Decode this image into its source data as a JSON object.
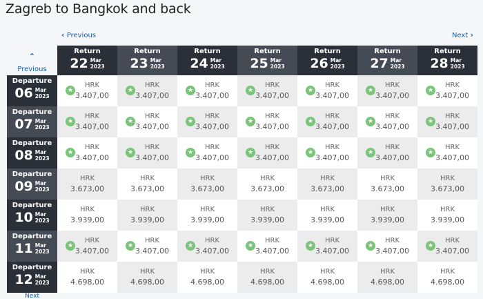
{
  "title": "Zagreb to Bangkok and back",
  "nav": {
    "prev_label": "Previous",
    "next_label": "Next",
    "prev_side_label": "Previous",
    "next_side_label": "Next"
  },
  "returns": [
    {
      "label": "Return",
      "day": "22",
      "month": "Mar",
      "year": "2023"
    },
    {
      "label": "Return",
      "day": "23",
      "month": "Mar",
      "year": "2023"
    },
    {
      "label": "Return",
      "day": "24",
      "month": "Mar",
      "year": "2023"
    },
    {
      "label": "Return",
      "day": "25",
      "month": "Mar",
      "year": "2023"
    },
    {
      "label": "Return",
      "day": "26",
      "month": "Mar",
      "year": "2023"
    },
    {
      "label": "Return",
      "day": "27",
      "month": "Mar",
      "year": "2023"
    },
    {
      "label": "Return",
      "day": "28",
      "month": "Mar",
      "year": "2023"
    }
  ],
  "departures": [
    {
      "label": "Departure",
      "day": "06",
      "month": "Mar",
      "year": "2023",
      "star": true,
      "prices": [
        "3.407,00",
        "3.407,00",
        "3.407,00",
        "3.407,00",
        "3.407,00",
        "3.407,00",
        "3.407,00"
      ]
    },
    {
      "label": "Departure",
      "day": "07",
      "month": "Mar",
      "year": "2023",
      "star": true,
      "prices": [
        "3.407,00",
        "3.407,00",
        "3.407,00",
        "3.407,00",
        "3.407,00",
        "3.407,00",
        "3.407,00"
      ]
    },
    {
      "label": "Departure",
      "day": "08",
      "month": "Mar",
      "year": "2023",
      "star": true,
      "prices": [
        "3.407,00",
        "3.407,00",
        "3.407,00",
        "3.407,00",
        "3.407,00",
        "3.407,00",
        "3.407,00"
      ]
    },
    {
      "label": "Departure",
      "day": "09",
      "month": "Mar",
      "year": "2023",
      "star": false,
      "prices": [
        "3.673,00",
        "3.673,00",
        "3.673,00",
        "3.673,00",
        "3.673,00",
        "3.673,00",
        "3.673,00"
      ]
    },
    {
      "label": "Departure",
      "day": "10",
      "month": "Mar",
      "year": "2023",
      "star": false,
      "prices": [
        "3.939,00",
        "3.939,00",
        "3.939,00",
        "3.939,00",
        "3.939,00",
        "3.939,00",
        "3.939,00"
      ]
    },
    {
      "label": "Departure",
      "day": "11",
      "month": "Mar",
      "year": "2023",
      "star": true,
      "prices": [
        "3.407,00",
        "3.407,00",
        "3.407,00",
        "3.407,00",
        "3.407,00",
        "3.407,00",
        "3.407,00"
      ]
    },
    {
      "label": "Departure",
      "day": "12",
      "month": "Mar",
      "year": "2023",
      "star": false,
      "prices": [
        "4.698,00",
        "4.698,00",
        "4.698,00",
        "4.698,00",
        "4.698,00",
        "4.698,00",
        "4.698,00"
      ]
    }
  ],
  "currency": "HRK",
  "star_icon": "star-icon",
  "colors": {
    "header_dark": "#2a2f38",
    "header_light": "#454b55",
    "star_green": "#7cc47c",
    "link_blue": "#1b5fa8"
  }
}
